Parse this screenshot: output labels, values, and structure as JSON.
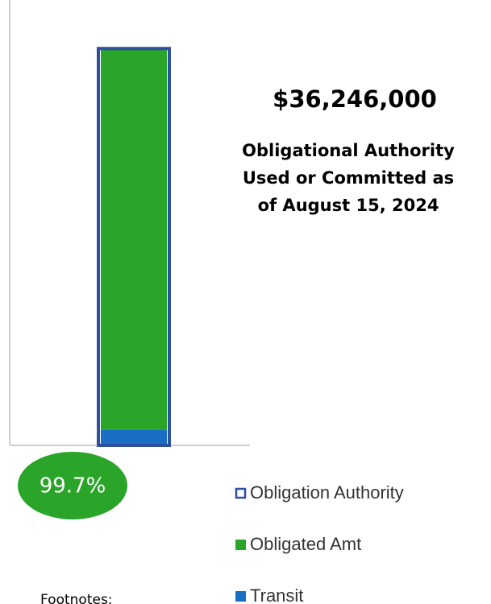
{
  "chart_data": {
    "type": "bar",
    "categories": [
      null
    ],
    "series": [
      {
        "name": "Obligation Authority",
        "color": "#2f4f9f",
        "style": "outline",
        "values": [
          36355000
        ]
      },
      {
        "name": "Obligated Amt",
        "color": "#2aa52a",
        "style": "stacked",
        "values": [
          34796000
        ]
      },
      {
        "name": "Transit",
        "color": "#1a6fc4",
        "style": "stacked",
        "values": [
          1450000
        ]
      }
    ],
    "ylim": [
      0,
      40800000
    ],
    "amount_label": "$36,246,000",
    "subtitle_lines": [
      "Obligational Authority",
      "Used or  Committed as",
      "of August 15, 2024"
    ],
    "percent_label": "99.7%",
    "footnote_heading": "Footnotes:"
  }
}
